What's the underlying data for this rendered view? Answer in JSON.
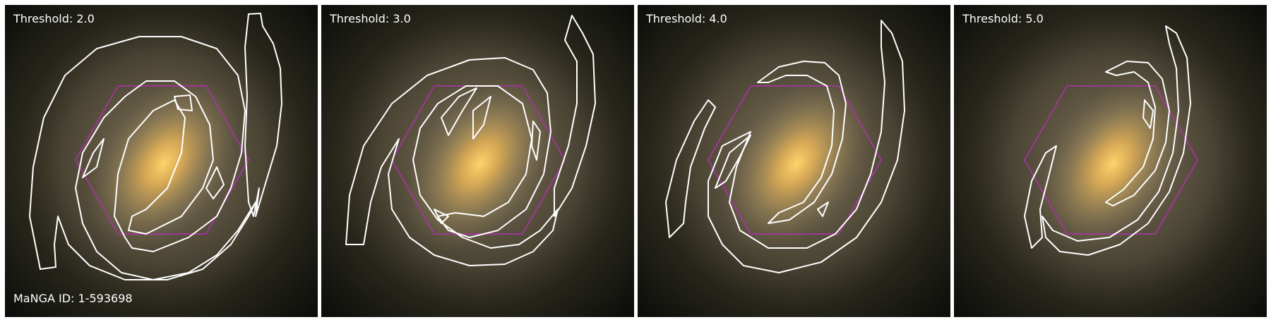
{
  "panels": [
    {
      "threshold_label": "Threshold: 2.0"
    },
    {
      "threshold_label": "Threshold: 3.0"
    },
    {
      "threshold_label": "Threshold: 4.0"
    },
    {
      "threshold_label": "Threshold: 5.0"
    }
  ],
  "galaxy": {
    "manga_id_label": "MaNGA ID: 1-593698"
  },
  "colors": {
    "contour": "#ffffff",
    "ifu_hexagon": "#b030b0",
    "galaxy_core": "#ffd060",
    "background": "#0c0e0a"
  }
}
